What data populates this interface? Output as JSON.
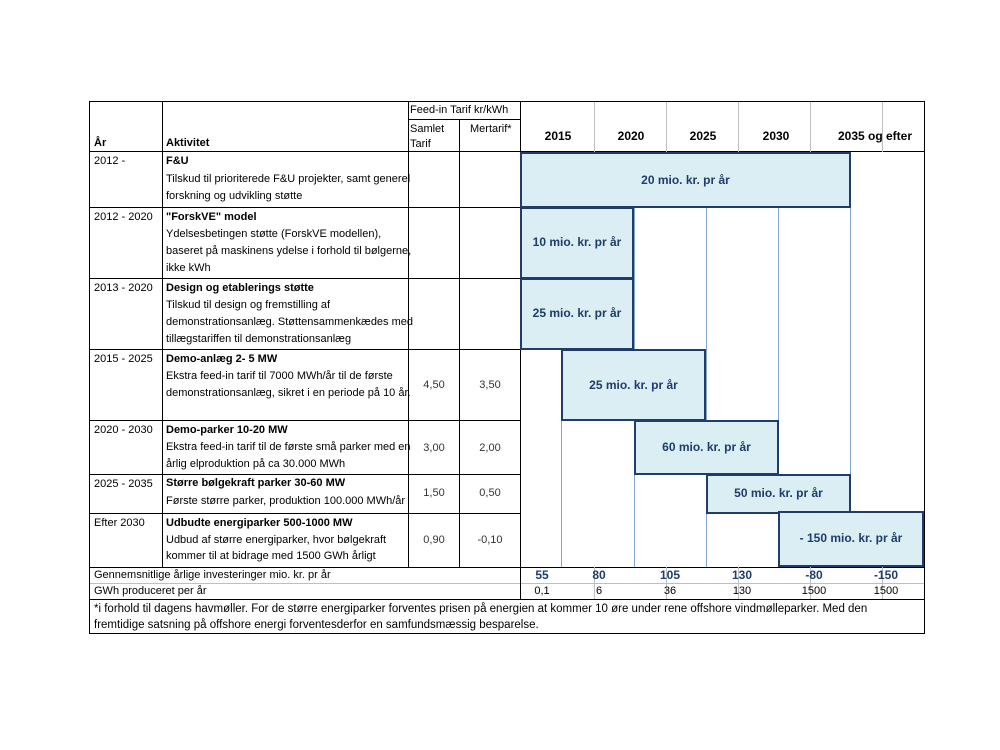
{
  "header": {
    "col_year": "År",
    "col_activity": "Aktivitet",
    "feedin_group": "Feed-in Tarif kr/kWh",
    "feedin_total": [
      "Samlet",
      "Tarif"
    ],
    "feedin_extra": "Mertarif*",
    "years": [
      "2015",
      "2020",
      "2025",
      "2030",
      "2035 og efter"
    ]
  },
  "rows": [
    {
      "period": "2012 -",
      "title": "F&U",
      "desc": [
        "Tilskud til prioriterede F&U projekter, samt generel",
        "forskning og udvikling støtte"
      ],
      "tarif": "",
      "mertarif": "",
      "bar": "20 mio. kr. pr år"
    },
    {
      "period": "2012 - 2020",
      "title": "\"ForskVE\" model",
      "desc": [
        "Ydelsesbetingen støtte (ForskVE modellen),",
        "baseret på maskinens ydelse i forhold til bølgerne,",
        "ikke kWh"
      ],
      "tarif": "",
      "mertarif": "",
      "bar": "10 mio. kr. pr år"
    },
    {
      "period": "2013 - 2020",
      "title": "Design og etablerings støtte",
      "desc": [
        "Tilskud til design og fremstilling af",
        "demonstrationsanlæg. Støttensammenkædes med",
        "tillægstariffen til demonstrationsanlæg"
      ],
      "tarif": "",
      "mertarif": "",
      "bar": "25 mio. kr. pr år"
    },
    {
      "period": "2015 - 2025",
      "title": "Demo-anlæg  2- 5 MW",
      "desc": [
        "Ekstra feed-in tarif til 7000 MWh/år til de første",
        "demonstrationsanlæg, sikret i en periode på 10 år."
      ],
      "tarif": "4,50",
      "mertarif": "3,50",
      "bar": "25 mio. kr. pr år"
    },
    {
      "period": "2020 - 2030",
      "title": "Demo-parker 10-20 MW",
      "desc": [
        "Ekstra feed-in tarif til de første små parker med en",
        "årlig elproduktion på ca  30.000 MWh"
      ],
      "tarif": "3,00",
      "mertarif": "2,00",
      "bar": "60 mio. kr. pr år"
    },
    {
      "period": "2025 - 2035",
      "title": "Større bølgekraft parker 30-60 MW",
      "desc": [
        "Første større parker, produktion 100.000 MWh/år"
      ],
      "tarif": "1,50",
      "mertarif": "0,50",
      "bar": "50 mio. kr. pr år"
    },
    {
      "period": "Efter 2030",
      "title": "Udbudte energiparker 500-1000 MW",
      "desc": [
        "Udbud af større energiparker, hvor bølgekraft",
        "kommer til at bidrage med 1500 GWh årligt"
      ],
      "tarif": "0,90",
      "mertarif": "-0,10",
      "bar": "- 150 mio. kr. pr år"
    }
  ],
  "totals": {
    "label": "Gennemsnitlige årlige investeringer mio. kr. pr år",
    "values": [
      "55",
      "80",
      "105",
      "130",
      "-80",
      "-150"
    ]
  },
  "gwh": {
    "label": "GWh produceret per år",
    "values": [
      "0,1",
      "6",
      "36",
      "130",
      "1500",
      "1500"
    ]
  },
  "footnote": [
    "*i forhold til dagens havmøller. For de større energiparker forventes prisen på energien at kommer 10 øre under rene offshore vindmølleparker. Med den",
    "fremtidige satsning på offshore energi forventesderfor en samfundsmæssig besparelse."
  ]
}
